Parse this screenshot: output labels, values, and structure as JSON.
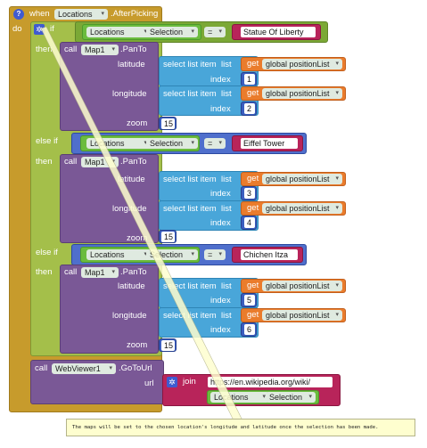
{
  "event": {
    "when": "when",
    "component": "Locations",
    "event_name": ".AfterPicking",
    "do": "do",
    "help_icon": "question-icon"
  },
  "labels": {
    "if": "if",
    "else_if": "else if",
    "then": "then",
    "call": "call",
    "pan_to": ".PanTo",
    "latitude": "latitude",
    "longitude": "longitude",
    "zoom": "zoom",
    "index": "index",
    "select_list_item": "select list item",
    "list": "list",
    "get": "get",
    "equals": "=",
    "selection": "Selection",
    "map": "Map1",
    "go_to_url": ".GoToUrl",
    "url": "url",
    "join": "join"
  },
  "variable": "global positionList",
  "components": {
    "list_picker": "Locations",
    "webviewer": "WebViewer1"
  },
  "branches": [
    {
      "compare": "Statue Of Liberty",
      "lat_index": "1",
      "lon_index": "2",
      "zoom": "15"
    },
    {
      "compare": "Eiffel Tower",
      "lat_index": "3",
      "lon_index": "4",
      "zoom": "15"
    },
    {
      "compare": "Chichen Itza",
      "lat_index": "5",
      "lon_index": "6",
      "zoom": "15"
    }
  ],
  "url_prefix": "https://en.wikipedia.org/wiki/",
  "comment": "The maps will be set to the chosen location's longitude and latitude once the selection has been made.",
  "colors": {
    "event": "#c79b2c",
    "control": "#a4bf4a",
    "component": "#7a5896",
    "list": "#49a6d9",
    "variable": "#ea7c2c",
    "number": "#3b5ec0",
    "text": "#b8245a"
  }
}
